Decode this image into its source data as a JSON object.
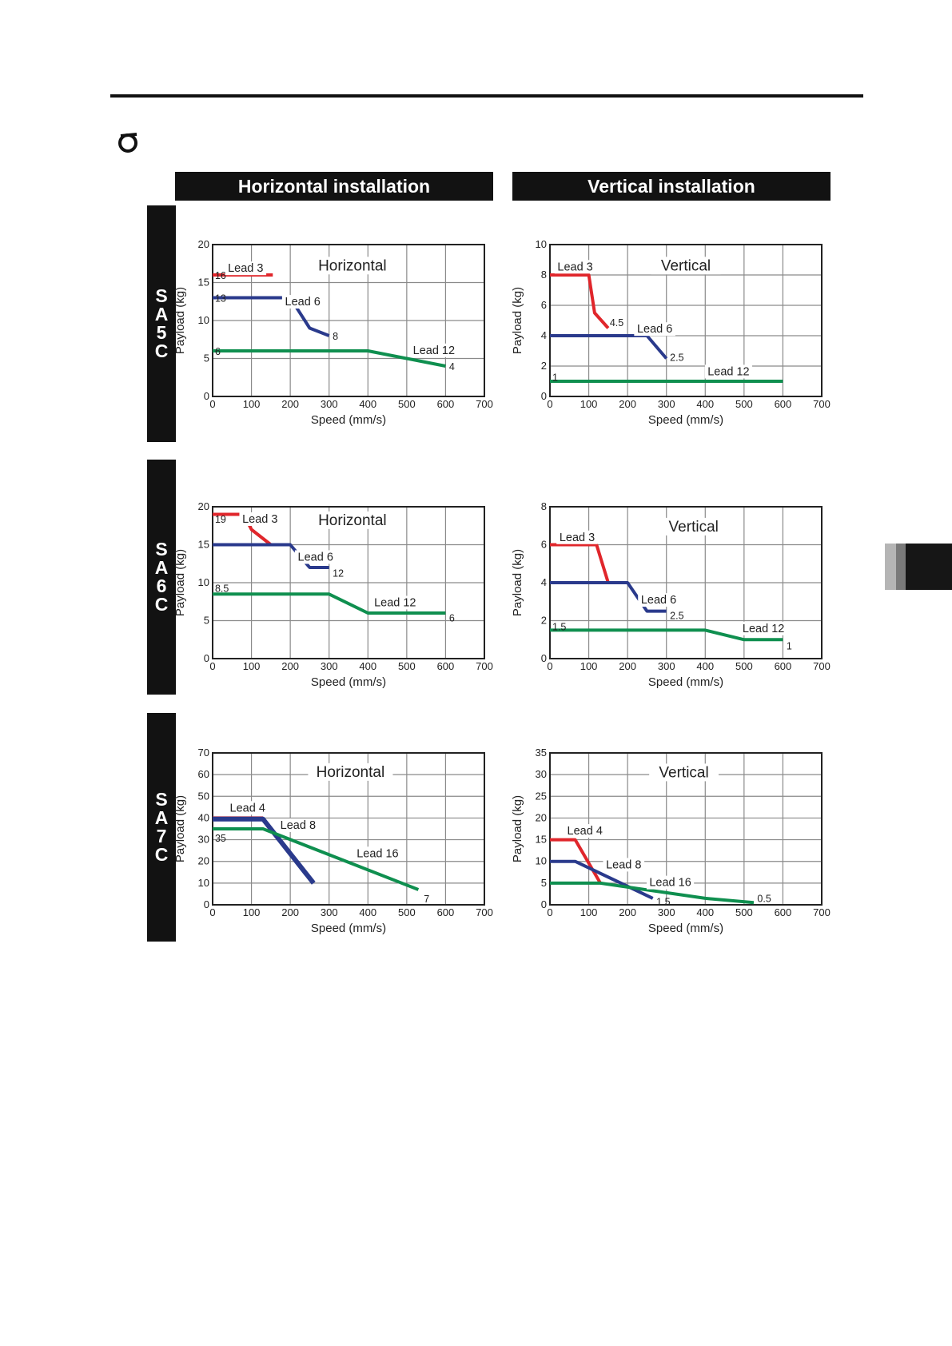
{
  "header": {
    "horizontal_label": "Horizontal installation",
    "vertical_label": "Vertical installation"
  },
  "models": [
    {
      "id": "sa5c",
      "letters": [
        "S",
        "A",
        "5",
        "C"
      ]
    },
    {
      "id": "sa6c",
      "letters": [
        "S",
        "A",
        "6",
        "C"
      ]
    },
    {
      "id": "sa7c",
      "letters": [
        "S",
        "A",
        "7",
        "C"
      ]
    }
  ],
  "colors": {
    "red": "#e0262b",
    "blue": "#2a3a8c",
    "green": "#0f8f4f",
    "grid": "#8a8a8a"
  },
  "chart_data": [
    {
      "id": "sa5c-horizontal",
      "type": "line",
      "title": "Horizontal",
      "xlabel": "Speed (mm/s)",
      "ylabel": "Payload (kg)",
      "xlim": [
        0,
        700
      ],
      "ylim": [
        0,
        20
      ],
      "xticks": [
        0,
        100,
        200,
        300,
        400,
        500,
        600,
        700
      ],
      "yticks": [
        0,
        5,
        10,
        15,
        20
      ],
      "series": [
        {
          "name": "Lead 3",
          "color": "#e0262b",
          "points": [
            [
              0,
              16
            ],
            [
              155,
              16
            ]
          ]
        },
        {
          "name": "Lead 6",
          "color": "#2a3a8c",
          "points": [
            [
              0,
              13
            ],
            [
              200,
              13
            ],
            [
              250,
              9
            ],
            [
              300,
              8
            ]
          ]
        },
        {
          "name": "Lead 12",
          "color": "#0f8f4f",
          "points": [
            [
              0,
              6
            ],
            [
              400,
              6
            ],
            [
              600,
              4
            ]
          ]
        }
      ],
      "annotations": [
        {
          "text": "16",
          "x": 2,
          "y": 16
        },
        {
          "text": "13",
          "x": 2,
          "y": 13
        },
        {
          "text": "8",
          "x": 305,
          "y": 8
        },
        {
          "text": "6",
          "x": 2,
          "y": 6
        },
        {
          "text": "4",
          "x": 605,
          "y": 4
        }
      ],
      "series_labels": [
        {
          "text": "Lead 3",
          "x": 85,
          "y": 16.4
        },
        {
          "text": "Lead 6",
          "x": 232,
          "y": 12
        },
        {
          "text": "Lead 12",
          "x": 570,
          "y": 5.6
        }
      ],
      "title_pos": [
        360,
        16.6
      ]
    },
    {
      "id": "sa5c-vertical",
      "type": "line",
      "title": "Vertical",
      "xlabel": "Speed (mm/s)",
      "ylabel": "Payload (kg)",
      "xlim": [
        0,
        700
      ],
      "ylim": [
        0,
        10
      ],
      "xticks": [
        0,
        100,
        200,
        300,
        400,
        500,
        600,
        700
      ],
      "yticks": [
        0,
        2,
        4,
        6,
        8,
        10
      ],
      "series": [
        {
          "name": "Lead 3",
          "color": "#e0262b",
          "points": [
            [
              0,
              8
            ],
            [
              100,
              8
            ],
            [
              115,
              5.5
            ],
            [
              150,
              4.5
            ]
          ]
        },
        {
          "name": "Lead 6",
          "color": "#2a3a8c",
          "points": [
            [
              0,
              4
            ],
            [
              250,
              4
            ],
            [
              300,
              2.5
            ]
          ]
        },
        {
          "name": "Lead 12",
          "color": "#0f8f4f",
          "points": [
            [
              0,
              1
            ],
            [
              600,
              1
            ]
          ]
        }
      ],
      "annotations": [
        {
          "text": "4.5",
          "x": 150,
          "y": 4.9
        },
        {
          "text": "2.5",
          "x": 305,
          "y": 2.6
        },
        {
          "text": "1",
          "x": 2,
          "y": 1.3
        }
      ],
      "series_labels": [
        {
          "text": "Lead 3",
          "x": 65,
          "y": 8.3
        },
        {
          "text": "Lead 6",
          "x": 270,
          "y": 4.2
        },
        {
          "text": "Lead 12",
          "x": 460,
          "y": 1.4
        }
      ],
      "title_pos": [
        350,
        8.3
      ]
    },
    {
      "id": "sa6c-horizontal",
      "type": "line",
      "title": "Horizontal",
      "xlabel": "Speed (mm/s)",
      "ylabel": "Payload (kg)",
      "xlim": [
        0,
        700
      ],
      "ylim": [
        0,
        20
      ],
      "xticks": [
        0,
        100,
        200,
        300,
        400,
        500,
        600,
        700
      ],
      "yticks": [
        0,
        5,
        10,
        15,
        20
      ],
      "series": [
        {
          "name": "Lead 3",
          "color": "#e0262b",
          "points": [
            [
              0,
              19
            ],
            [
              80,
              19
            ],
            [
              100,
              17
            ],
            [
              150,
              15
            ]
          ]
        },
        {
          "name": "Lead 6",
          "color": "#2a3a8c",
          "points": [
            [
              0,
              15
            ],
            [
              200,
              15
            ],
            [
              250,
              12
            ],
            [
              300,
              12
            ]
          ]
        },
        {
          "name": "Lead 12",
          "color": "#0f8f4f",
          "points": [
            [
              0,
              8.5
            ],
            [
              300,
              8.5
            ],
            [
              400,
              6
            ],
            [
              600,
              6
            ]
          ]
        }
      ],
      "annotations": [
        {
          "text": "19",
          "x": 2,
          "y": 18.4
        },
        {
          "text": "12",
          "x": 305,
          "y": 11.3
        },
        {
          "text": "8.5",
          "x": 2,
          "y": 9.3
        },
        {
          "text": "6",
          "x": 605,
          "y": 5.4
        }
      ],
      "series_labels": [
        {
          "text": "Lead 3",
          "x": 122,
          "y": 17.9
        },
        {
          "text": "Lead 6",
          "x": 265,
          "y": 12.9
        },
        {
          "text": "Lead 12",
          "x": 470,
          "y": 6.9
        }
      ],
      "title_pos": [
        360,
        17.6
      ]
    },
    {
      "id": "sa6c-vertical",
      "type": "line",
      "title": "Vertical",
      "xlabel": "Speed (mm/s)",
      "ylabel": "Payload (kg)",
      "xlim": [
        0,
        700
      ],
      "ylim": [
        0,
        8
      ],
      "xticks": [
        0,
        100,
        200,
        300,
        400,
        500,
        600,
        700
      ],
      "yticks": [
        0,
        2,
        4,
        6,
        8
      ],
      "series": [
        {
          "name": "Lead 3",
          "color": "#e0262b",
          "points": [
            [
              0,
              6
            ],
            [
              120,
              6
            ],
            [
              150,
              4
            ]
          ]
        },
        {
          "name": "Lead 6",
          "color": "#2a3a8c",
          "points": [
            [
              0,
              4
            ],
            [
              200,
              4
            ],
            [
              250,
              2.5
            ],
            [
              300,
              2.5
            ]
          ]
        },
        {
          "name": "Lead 12",
          "color": "#0f8f4f",
          "points": [
            [
              0,
              1.5
            ],
            [
              400,
              1.5
            ],
            [
              500,
              1
            ],
            [
              600,
              1
            ]
          ]
        }
      ],
      "annotations": [
        {
          "text": "1.5",
          "x": 2,
          "y": 1.7
        },
        {
          "text": "2.5",
          "x": 305,
          "y": 2.3
        },
        {
          "text": "1",
          "x": 605,
          "y": 0.7
        }
      ],
      "series_labels": [
        {
          "text": "Lead 3",
          "x": 70,
          "y": 6.2
        },
        {
          "text": "Lead 6",
          "x": 280,
          "y": 2.9
        },
        {
          "text": "Lead 12",
          "x": 550,
          "y": 1.4
        }
      ],
      "title_pos": [
        370,
        6.7
      ]
    },
    {
      "id": "sa7c-horizontal",
      "type": "line",
      "title": "Horizontal",
      "xlabel": "Speed (mm/s)",
      "ylabel": "Payload (kg)",
      "xlim": [
        0,
        700
      ],
      "ylim": [
        0,
        70
      ],
      "xticks": [
        0,
        100,
        200,
        300,
        400,
        500,
        600,
        700
      ],
      "yticks": [
        0,
        10,
        20,
        30,
        40,
        50,
        60,
        70
      ],
      "series": [
        {
          "name": "Lead 4",
          "color": "#e0262b",
          "points": [
            [
              0,
              40
            ],
            [
              130,
              40
            ]
          ]
        },
        {
          "name": "Lead 8",
          "color": "#2a3a8c",
          "points": [
            [
              0,
              39.5
            ],
            [
              130,
              39.5
            ],
            [
              260,
              10
            ]
          ]
        },
        {
          "name": "Lead 16",
          "color": "#0f8f4f",
          "points": [
            [
              0,
              35
            ],
            [
              130,
              35
            ],
            [
              530,
              7
            ]
          ]
        }
      ],
      "annotations": [
        {
          "text": "35",
          "x": 2,
          "y": 31
        },
        {
          "text": "7",
          "x": 540,
          "y": 3
        }
      ],
      "series_labels": [
        {
          "text": "Lead 4",
          "x": 90,
          "y": 43
        },
        {
          "text": "Lead 8",
          "x": 220,
          "y": 35
        },
        {
          "text": "Lead 16",
          "x": 425,
          "y": 22
        }
      ],
      "title_pos": [
        355,
        59
      ]
    },
    {
      "id": "sa7c-vertical",
      "type": "line",
      "title": "Vertical",
      "xlabel": "Speed (mm/s)",
      "ylabel": "Payload (kg)",
      "xlim": [
        0,
        700
      ],
      "ylim": [
        0,
        35
      ],
      "xticks": [
        0,
        100,
        200,
        300,
        400,
        500,
        600,
        700
      ],
      "yticks": [
        0,
        5,
        10,
        15,
        20,
        25,
        30,
        35
      ],
      "series": [
        {
          "name": "Lead 4",
          "color": "#e0262b",
          "points": [
            [
              0,
              15
            ],
            [
              65,
              15
            ],
            [
              130,
              5
            ]
          ]
        },
        {
          "name": "Lead 8",
          "color": "#2a3a8c",
          "points": [
            [
              0,
              10
            ],
            [
              65,
              10
            ],
            [
              265,
              1.5
            ]
          ]
        },
        {
          "name": "Lead 16",
          "color": "#0f8f4f",
          "points": [
            [
              0,
              5
            ],
            [
              130,
              5
            ],
            [
              400,
              1.5
            ],
            [
              525,
              0.5
            ]
          ]
        }
      ],
      "annotations": [
        {
          "text": "1.5",
          "x": 270,
          "y": 0.8
        },
        {
          "text": "0.5",
          "x": 530,
          "y": 1.6
        }
      ],
      "series_labels": [
        {
          "text": "Lead 4",
          "x": 90,
          "y": 16.2
        },
        {
          "text": "Lead 8",
          "x": 190,
          "y": 8.4
        },
        {
          "text": "Lead 16",
          "x": 310,
          "y": 4.3
        }
      ],
      "title_pos": [
        345,
        29.4
      ]
    }
  ]
}
